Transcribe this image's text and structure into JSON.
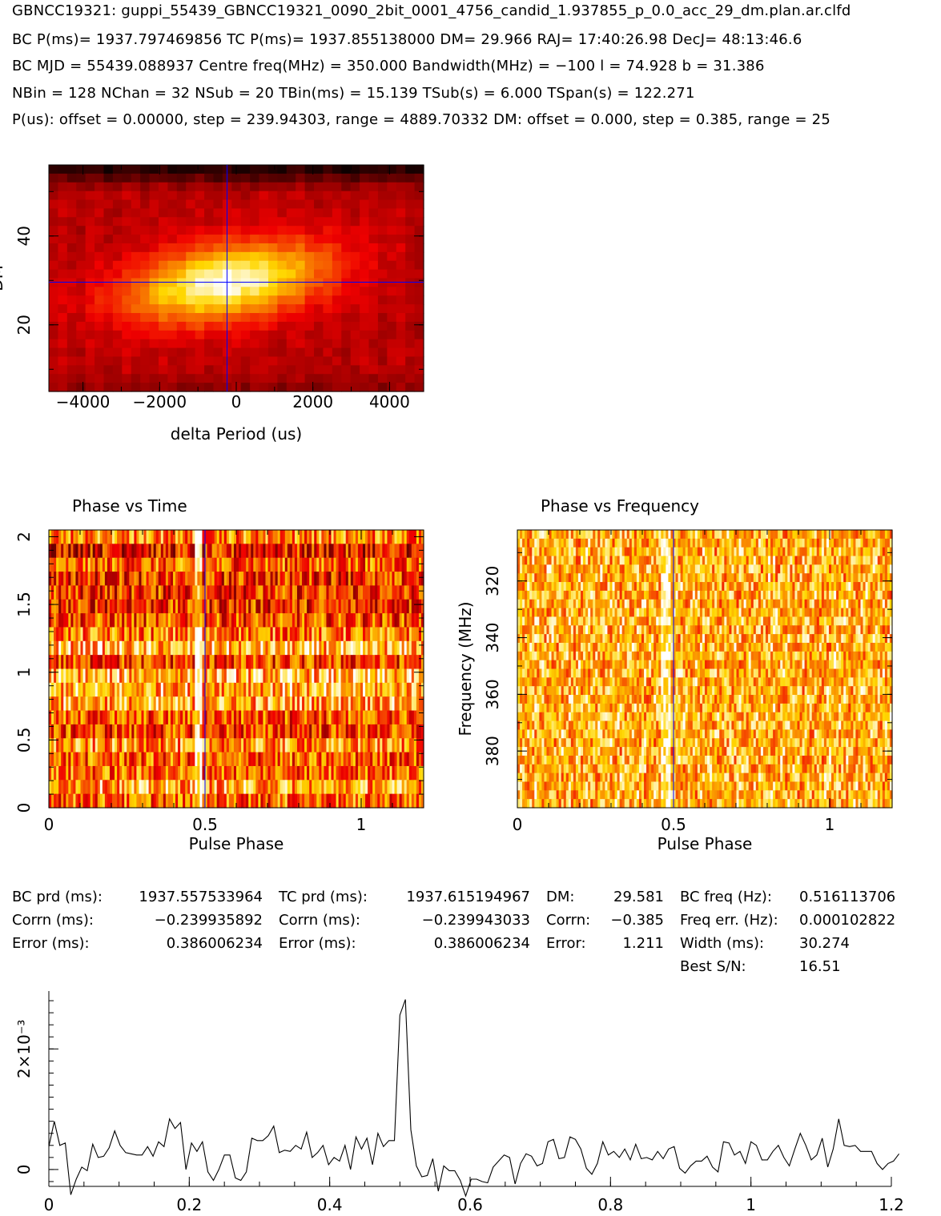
{
  "header": {
    "line1": "GBNCC19321: guppi_55439_GBNCC19321_0090_2bit_0001_4756_candid_1.937855_p_0.0_acc_29_dm.plan.ar.clfd",
    "line2": "BC P(ms)= 1937.797469856 TC P(ms)= 1937.855138000 DM= 29.966 RAJ= 17:40:26.98 DecJ= 48:13:46.6",
    "line3": "BC MJD = 55439.088937 Centre freq(MHz) = 350.000 Bandwidth(MHz) = −100 l = 74.928 b = 31.386",
    "line4": "NBin = 128 NChan = 32 NSub = 20 TBin(ms) = 15.139 TSub(s) = 6.000 TSpan(s) = 122.271",
    "line5": "P(us): offset = 0.00000, step = 239.94303, range = 4889.70332 DM: offset = 0.000, step = 0.385, range = 25"
  },
  "colors": {
    "cursor": "#0000ff",
    "hot_low": "#0a0000",
    "hot_high": "#ffffff"
  },
  "info_table": {
    "c1": [
      "BC prd (ms):",
      "Corrn (ms):",
      "Error (ms):"
    ],
    "c2": [
      "1937.557533964",
      "−0.239935892",
      "0.386006234"
    ],
    "c3": [
      "TC prd (ms):",
      "Corrn (ms):",
      "Error (ms):"
    ],
    "c4": [
      "1937.615194967",
      "−0.239943033",
      "0.386006234"
    ],
    "c5": [
      "DM:",
      "Corrn:",
      "Error:"
    ],
    "c6": [
      "29.581",
      "−0.385",
      "1.211"
    ],
    "c7": [
      "BC freq (Hz):",
      "Freq err. (Hz):",
      "Width (ms):",
      "Best S/N:"
    ],
    "c8": [
      "0.516113706",
      "0.000102822",
      "30.274",
      "16.51"
    ]
  },
  "chart_data": [
    {
      "type": "heatmap",
      "name": "dm-vs-dperiod",
      "xlabel": "delta Period (us)",
      "ylabel": "DM",
      "xlim": [
        -4890,
        4890
      ],
      "ylim": [
        5,
        56
      ],
      "xticks": [
        "−4000",
        "−2000",
        "0",
        "2000",
        "4000"
      ],
      "xtick_values": [
        -4000,
        -2000,
        0,
        2000,
        4000
      ],
      "yticks": [
        "20",
        "40"
      ],
      "ytick_values": [
        20,
        40
      ],
      "peak": {
        "dperiod": -240,
        "dm": 29.6
      },
      "cursor": {
        "x": -240,
        "y": 29.6
      },
      "grid_cols": 41,
      "grid_rows": 26
    },
    {
      "type": "heatmap",
      "name": "phase-vs-time",
      "title": "Phase vs Time",
      "xlabel": "Pulse Phase",
      "ylabel": "",
      "xlim": [
        0,
        1.2
      ],
      "ylim": [
        0,
        2.05
      ],
      "xticks": [
        "0",
        "0.5",
        "1"
      ],
      "xtick_values": [
        0,
        0.5,
        1
      ],
      "yticks": [
        "0",
        "0.5",
        "1",
        "1.5",
        "2"
      ],
      "ytick_values": [
        0,
        0.5,
        1,
        1.5,
        2
      ],
      "pulse_phase": 0.477,
      "cursor_x": 0.5,
      "grid_cols": 154,
      "grid_rows": 20
    },
    {
      "type": "heatmap",
      "name": "phase-vs-frequency",
      "title": "Phase vs Frequency",
      "xlabel": "Pulse Phase",
      "ylabel": "Frequency (MHz)",
      "xlim": [
        0,
        1.2
      ],
      "ylim": [
        400,
        302
      ],
      "xticks": [
        "0",
        "0.5",
        "1"
      ],
      "xtick_values": [
        0,
        0.5,
        1
      ],
      "yticks": [
        "320",
        "340",
        "360",
        "380"
      ],
      "ytick_values": [
        320,
        340,
        360,
        380
      ],
      "pulse_phase": 0.477,
      "cursor_x": 0.5,
      "grid_cols": 154,
      "grid_rows": 32
    },
    {
      "type": "line",
      "name": "pulse-profile",
      "xlim": [
        0,
        1.2
      ],
      "ylim": [
        -0.00028,
        0.00296
      ],
      "xticks": [
        "0",
        "0.2",
        "0.4",
        "0.6",
        "0.8",
        "1",
        "1.2"
      ],
      "xtick_values": [
        0,
        0.2,
        0.4,
        0.6,
        0.8,
        1.0,
        1.2
      ],
      "yticks": [
        "0",
        "2×10⁻³"
      ],
      "ytick_values": [
        0,
        0.002
      ],
      "x_step": 0.0078125,
      "values": [
        0.00038,
        0.0008,
        0.0004,
        0.00044,
        -0.00042,
        -0.00016,
        4e-05,
        -2e-05,
        0.00042,
        0.0002,
        0.00022,
        0.00036,
        0.00064,
        0.0004,
        0.00028,
        0.00026,
        0.00024,
        0.00024,
        0.00038,
        0.00022,
        0.00046,
        0.00038,
        0.00084,
        0.00068,
        0.00078,
        0.0,
        0.00044,
        0.0003,
        0.00046,
        -4e-05,
        -0.00018,
        0.0,
        0.00024,
        0.00024,
        -0.00014,
        -0.00018,
        -4e-05,
        0.00052,
        0.00048,
        0.00048,
        0.00056,
        0.00072,
        0.00028,
        0.00032,
        0.0003,
        0.0004,
        0.00034,
        0.00062,
        0.0002,
        0.00028,
        0.0004,
        8e-05,
        0.0002,
        0.00014,
        0.0004,
        0.0,
        0.00054,
        0.00034,
        0.00052,
        8e-05,
        0.0006,
        0.00038,
        0.00048,
        0.00048,
        0.00256,
        0.00282,
        0.00066,
        6e-05,
        -0.00012,
        -0.0001,
        0.00018,
        -0.00036,
        6e-05,
        -2e-05,
        -2e-05,
        -0.00018,
        -0.00044,
        -0.00016,
        -0.00016,
        -0.0002,
        -0.00022,
        4e-05,
        0.00014,
        0.00024,
        0.0002,
        -0.00024,
        0.0001,
        0.00026,
        0.00022,
        6e-05,
        0.0001,
        0.00046,
        0.0005,
        0.00018,
        0.0002,
        0.00054,
        0.0005,
        0.00034,
        2e-05,
        -8e-05,
        0.0001,
        0.00046,
        0.00024,
        0.0003,
        0.0002,
        0.00034,
        0.00016,
        0.00042,
        0.00018,
        0.0002,
        0.00016,
        0.0003,
        0.00018,
        0.00034,
        0.00038,
        2e-05,
        -6e-05,
        6e-05,
        0.00014,
        0.00014,
        0.00022,
        4e-05,
        -4e-05,
        0.00046,
        0.00044,
        0.00024,
        0.0003,
        0.0001,
        0.00046,
        0.0004,
        0.00016,
        0.00016,
        0.0003,
        0.0004,
        0.0002,
        6e-05,
        0.00034,
        0.0006,
        0.0004,
        0.00016,
        0.00024,
        0.00052,
        4e-05,
        0.00034,
        0.00084,
        0.0004,
        0.00038,
        0.0004,
        0.0003,
        0.0003,
        0.0003,
        0.0001,
        0.0,
        0.0001,
        0.00014,
        0.00026
      ]
    }
  ]
}
